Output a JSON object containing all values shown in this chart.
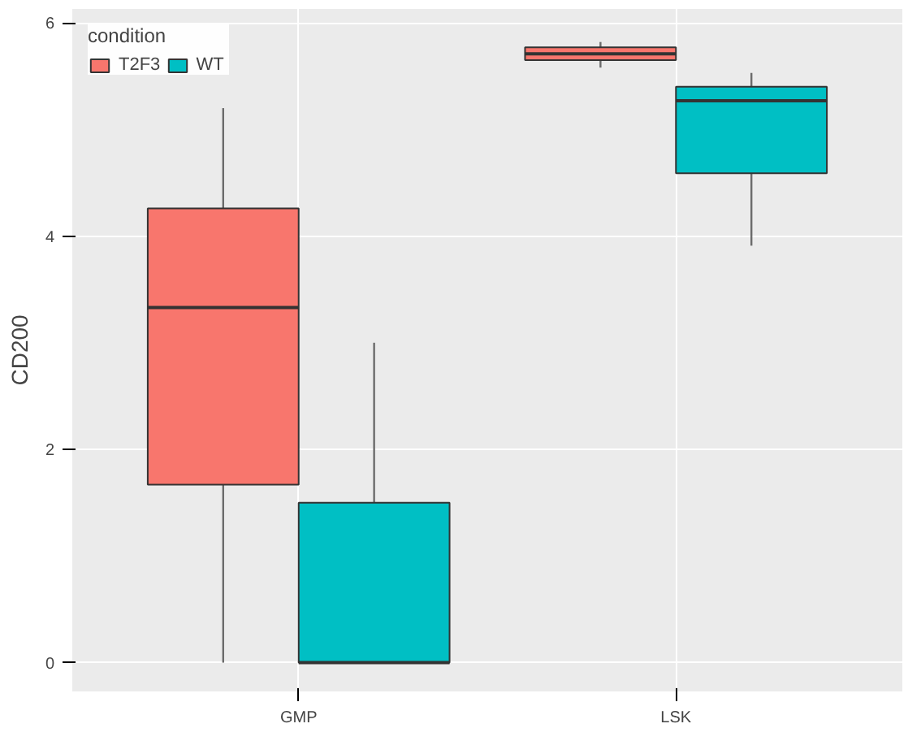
{
  "chart_data": {
    "type": "box",
    "ylabel": "CD200",
    "legend_title": "condition",
    "categories": [
      "GMP",
      "LSK"
    ],
    "series": [
      {
        "name": "T2F3",
        "color": "#f8766d",
        "boxes": [
          {
            "low": 0,
            "q1": 1.67,
            "median": 3.33,
            "q3": 4.26,
            "high": 5.2
          },
          {
            "low": 5.58,
            "q1": 5.65,
            "median": 5.71,
            "q3": 5.77,
            "high": 5.82
          }
        ]
      },
      {
        "name": "WT",
        "color": "#00bfc4",
        "boxes": [
          {
            "low": 0,
            "q1": 0,
            "median": 0,
            "q3": 1.5,
            "high": 3.0
          },
          {
            "low": 3.91,
            "q1": 4.59,
            "median": 5.27,
            "q3": 5.4,
            "high": 5.53
          }
        ]
      }
    ],
    "ylim": [
      -0.27,
      6.13
    ],
    "yticks": [
      0,
      2,
      4,
      6
    ],
    "grid": true,
    "legend": "top left"
  }
}
